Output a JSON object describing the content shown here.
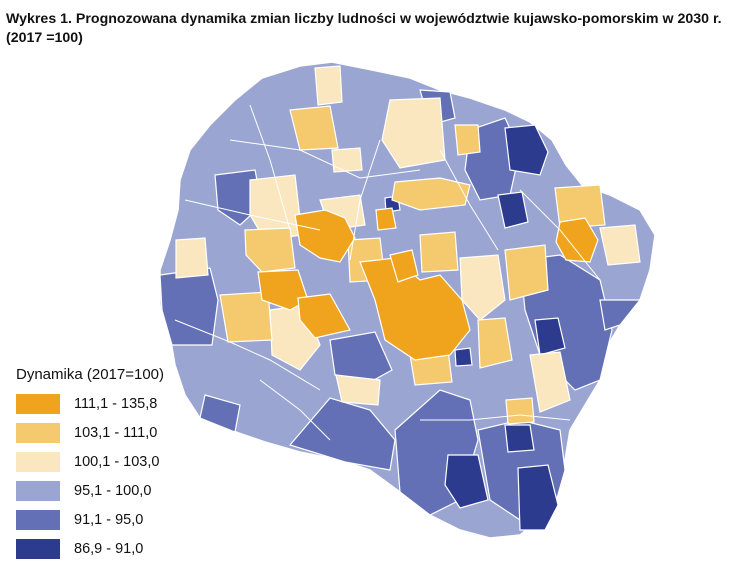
{
  "title": "Wykres 1. Prognozowana dynamika zmian liczby ludności w województwie kujawsko-pomorskim w 2030 r. (2017 =100)",
  "legend": {
    "title": "Dynamika (2017=100)",
    "classes": [
      {
        "label": "111,1 - 135,8",
        "color": "#f0a41e"
      },
      {
        "label": "103,1 - 111,0",
        "color": "#f5c96d"
      },
      {
        "label": "100,1 - 103,0",
        "color": "#fbe7bf"
      },
      {
        "label": "95,1 - 100,0",
        "color": "#9aa5d2"
      },
      {
        "label": "91,1 - 95,0",
        "color": "#6370b5"
      },
      {
        "label": "86,9 - 91,0",
        "color": "#2d3b8e"
      }
    ]
  },
  "map": {
    "boundary_color": "#ffffff",
    "default_class": "95,1 - 100,0"
  }
}
